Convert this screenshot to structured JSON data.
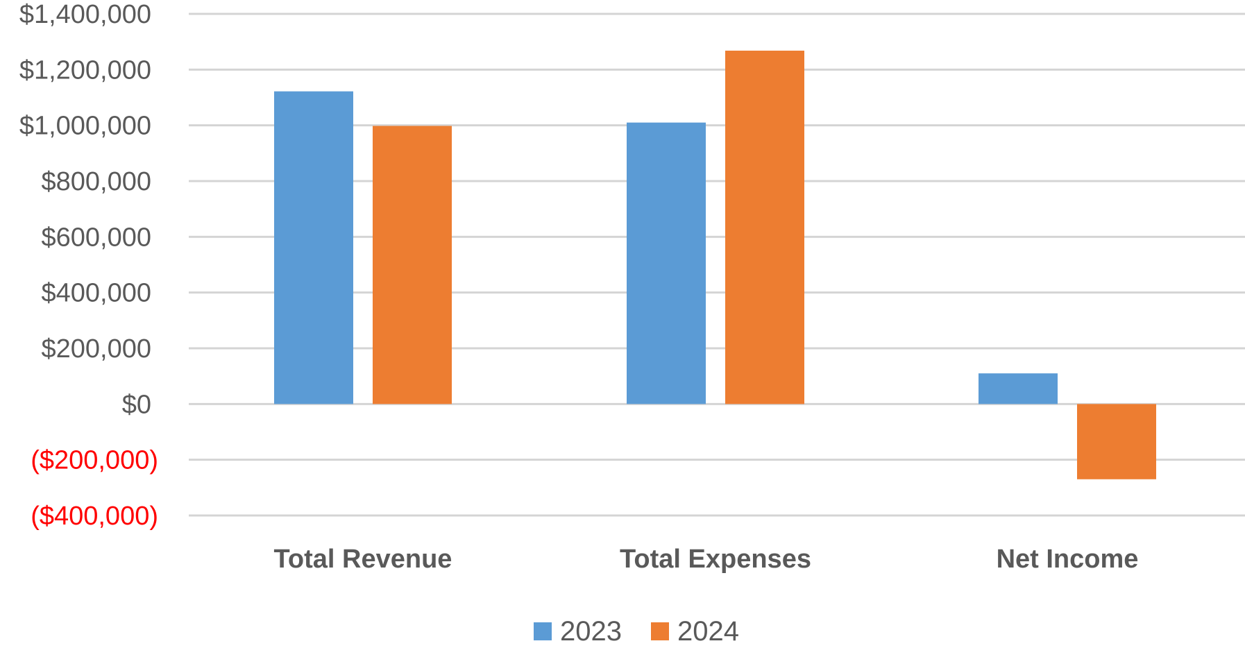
{
  "chart_data": {
    "type": "bar",
    "title": "",
    "xlabel": "",
    "ylabel": "",
    "categories": [
      "Total Revenue",
      "Total Expenses",
      "Net Income"
    ],
    "series": [
      {
        "name": "2023",
        "color": "#5b9bd5",
        "values": [
          1122000,
          1010000,
          110000
        ]
      },
      {
        "name": "2024",
        "color": "#ed7d31",
        "values": [
          998000,
          1268000,
          -270000
        ]
      }
    ],
    "ylim": [
      -400000,
      1400000
    ],
    "y_ticks": [
      {
        "value": 1400000,
        "label": "$1,400,000"
      },
      {
        "value": 1200000,
        "label": "$1,200,000"
      },
      {
        "value": 1000000,
        "label": "$1,000,000"
      },
      {
        "value": 800000,
        "label": "$800,000"
      },
      {
        "value": 600000,
        "label": "$600,000"
      },
      {
        "value": 400000,
        "label": "$400,000"
      },
      {
        "value": 200000,
        "label": "$200,000"
      },
      {
        "value": 0,
        "label": "$0"
      },
      {
        "value": -200000,
        "label": "($200,000)"
      },
      {
        "value": -400000,
        "label": "($400,000)"
      }
    ],
    "negative_label_color": "#ff0000",
    "grid": true,
    "legend_position": "bottom"
  }
}
